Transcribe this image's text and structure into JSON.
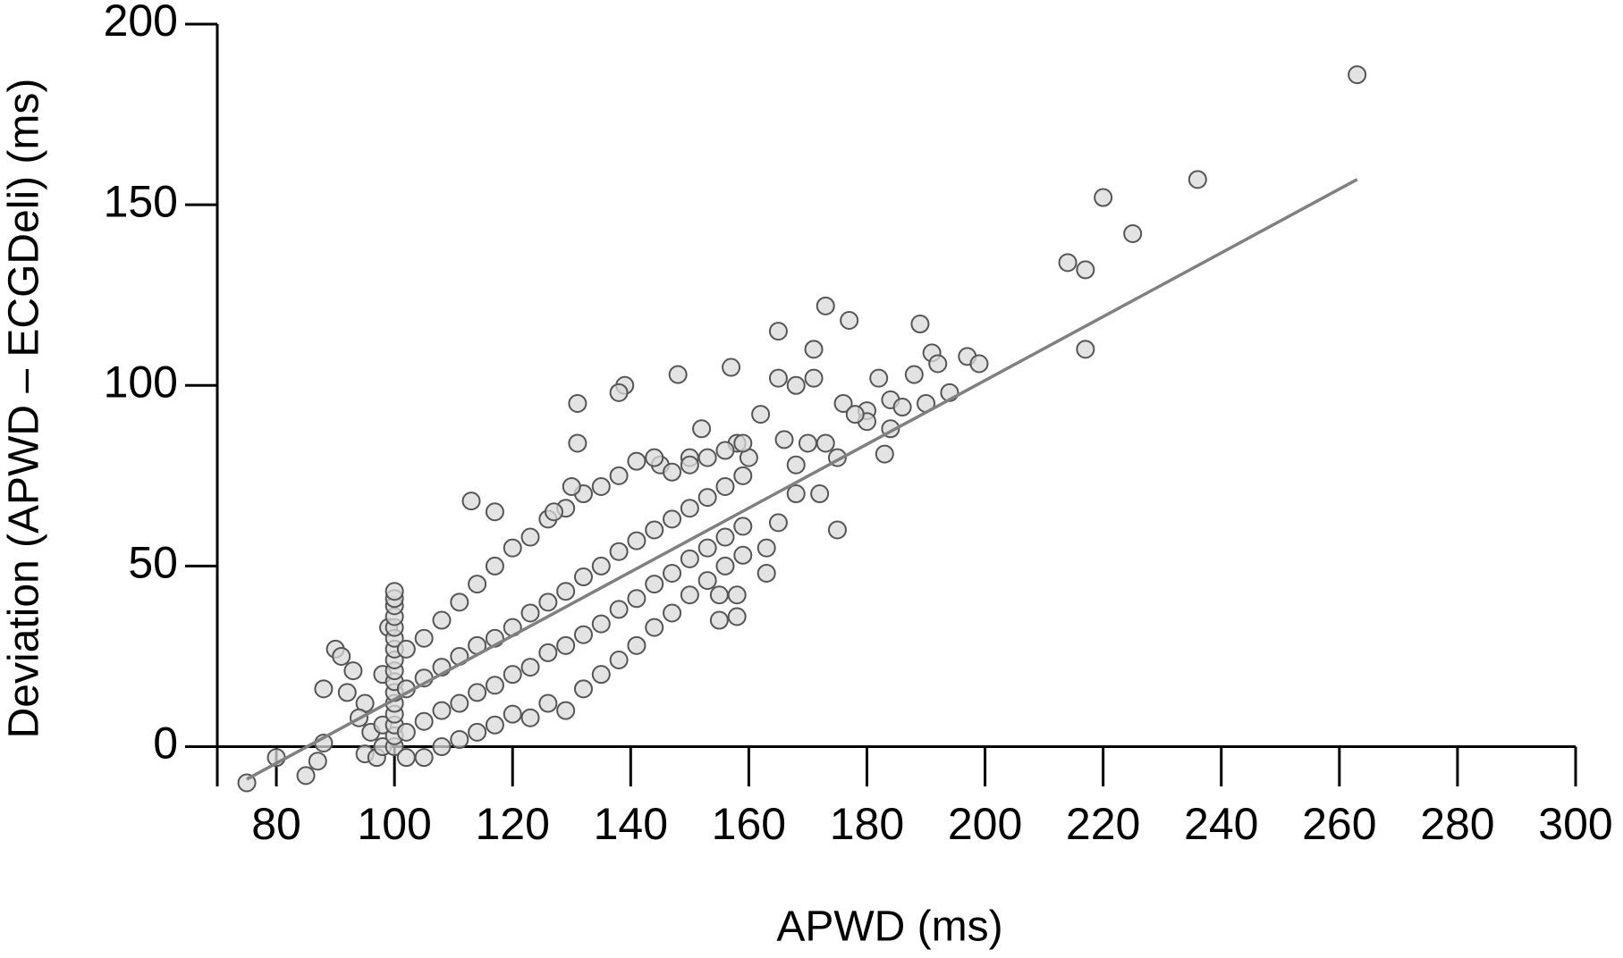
{
  "chart_data": {
    "type": "scatter",
    "xlabel": "APWD (ms)",
    "ylabel": "Deviation (APWD – ECGDeli) (ms)",
    "xlim": [
      70,
      300
    ],
    "ylim": [
      -11,
      200
    ],
    "xticks": [
      80,
      100,
      120,
      140,
      160,
      180,
      200,
      220,
      240,
      260,
      280,
      300
    ],
    "yticks": [
      0,
      50,
      100,
      150,
      200
    ],
    "marker_color": "#d9d9d9",
    "marker_edge": "#555555",
    "fit_color": "#808080",
    "x": [
      263,
      236,
      220,
      225,
      214,
      217,
      217,
      189,
      173,
      177,
      165,
      171,
      191,
      192,
      197,
      199,
      188,
      182,
      194,
      190,
      184,
      186,
      180,
      180,
      176,
      178,
      184,
      183,
      175,
      175,
      173,
      170,
      148,
      157,
      165,
      168,
      171,
      139,
      138,
      131,
      131,
      162,
      152,
      158,
      160,
      150,
      145,
      166,
      168,
      172,
      163,
      163,
      158,
      155,
      158,
      155,
      165,
      168,
      75,
      80,
      85,
      87,
      88,
      88,
      90,
      91,
      93,
      92,
      95,
      94,
      96,
      95,
      97,
      98,
      98,
      98,
      99,
      100,
      100,
      100,
      100,
      100,
      100,
      100,
      100,
      100,
      100,
      100,
      100,
      100,
      100,
      100,
      100,
      102,
      102,
      102,
      102,
      105,
      105,
      105,
      105,
      108,
      108,
      108,
      108,
      111,
      111,
      111,
      111,
      114,
      114,
      114,
      114,
      117,
      117,
      117,
      117,
      120,
      120,
      120,
      120,
      123,
      123,
      123,
      123,
      126,
      126,
      126,
      126,
      129,
      129,
      129,
      129,
      132,
      132,
      132,
      132,
      135,
      135,
      135,
      135,
      138,
      138,
      138,
      138,
      141,
      141,
      141,
      141,
      144,
      144,
      144,
      144,
      147,
      147,
      147,
      147,
      150,
      150,
      150,
      150,
      153,
      153,
      153,
      153,
      156,
      156,
      156,
      156,
      159,
      159,
      159,
      159,
      113,
      117,
      130,
      127
    ],
    "y": [
      186,
      157,
      152,
      142,
      134,
      132,
      110,
      117,
      122,
      118,
      115,
      110,
      109,
      106,
      108,
      106,
      103,
      102,
      98,
      95,
      96,
      94,
      93,
      90,
      95,
      92,
      88,
      81,
      80,
      60,
      84,
      84,
      103,
      105,
      102,
      100,
      102,
      100,
      98,
      95,
      84,
      92,
      88,
      84,
      80,
      80,
      78,
      85,
      78,
      70,
      55,
      48,
      42,
      35,
      36,
      42,
      62,
      70,
      -10,
      -3,
      -8,
      -4,
      1,
      16,
      27,
      25,
      21,
      15,
      12,
      8,
      4,
      -2,
      -3,
      0,
      6,
      20,
      33,
      0,
      3,
      6,
      9,
      12,
      15,
      18,
      21,
      24,
      27,
      30,
      33,
      36,
      39,
      41,
      43,
      -3,
      4,
      16,
      27,
      -3,
      7,
      19,
      30,
      0,
      10,
      22,
      35,
      2,
      12,
      25,
      40,
      4,
      15,
      28,
      45,
      6,
      17,
      30,
      50,
      9,
      20,
      33,
      55,
      8,
      22,
      37,
      58,
      12,
      26,
      40,
      63,
      10,
      28,
      43,
      66,
      16,
      31,
      47,
      70,
      20,
      34,
      50,
      72,
      24,
      38,
      54,
      75,
      28,
      41,
      57,
      79,
      33,
      45,
      60,
      80,
      37,
      48,
      63,
      76,
      42,
      52,
      66,
      78,
      46,
      55,
      69,
      80,
      50,
      58,
      72,
      82,
      53,
      61,
      75,
      84,
      68,
      65,
      72,
      65
    ],
    "fit": {
      "x": [
        75,
        263
      ],
      "y": [
        -9,
        157
      ]
    }
  }
}
